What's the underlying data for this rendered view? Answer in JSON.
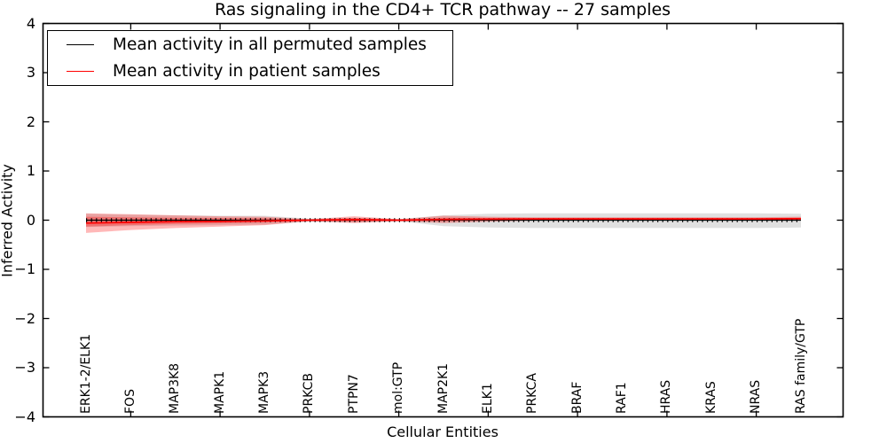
{
  "chart_data": {
    "type": "line",
    "title": "Ras signaling in the CD4+ TCR pathway -- 27 samples",
    "xlabel": "Cellular Entities",
    "ylabel": "Inferred Activity",
    "ylim": [
      -4,
      4
    ],
    "y_ticks": [
      {
        "value": 4,
        "label": "4"
      },
      {
        "value": 3,
        "label": "3"
      },
      {
        "value": 2,
        "label": "2"
      },
      {
        "value": 1,
        "label": "1"
      },
      {
        "value": 0,
        "label": "0"
      },
      {
        "value": -1,
        "label": "−1"
      },
      {
        "value": -2,
        "label": "−2"
      },
      {
        "value": -3,
        "label": "−3"
      },
      {
        "value": -4,
        "label": "−4"
      }
    ],
    "categories": [
      "ERK1-2/ELK1",
      "FOS",
      "MAP3K8",
      "MAPK1",
      "MAPK3",
      "PRKCB",
      "PTPN7",
      "mol:GTP",
      "MAP2K1",
      "ELK1",
      "PRKCA",
      "BRAF",
      "RAF1",
      "HRAS",
      "KRAS",
      "NRAS",
      "RAS family/GTP"
    ],
    "x_tick_mark_indices": [
      1,
      3,
      5,
      7,
      9,
      11,
      13,
      15
    ],
    "grid": false,
    "legend": {
      "position": "upper left",
      "entries": [
        {
          "label": "Mean activity in all permuted samples",
          "color": "#000000"
        },
        {
          "label": "Mean activity in patient samples",
          "color": "#ff0000"
        }
      ]
    },
    "series": [
      {
        "name": "Mean activity in all permuted samples",
        "color": "#000000",
        "band_color": "rgba(0,0,0,0.12)",
        "mean": [
          0,
          0,
          0,
          0,
          0,
          0,
          0,
          0,
          0,
          0,
          0,
          0,
          0,
          0,
          0,
          0,
          0
        ],
        "band_upper": [
          0.13,
          0.11,
          0.1,
          0.09,
          0.09,
          0.03,
          0.05,
          0.02,
          0.1,
          0.13,
          0.14,
          0.14,
          0.14,
          0.14,
          0.14,
          0.14,
          0.13
        ],
        "band_lower": [
          -0.14,
          -0.12,
          -0.11,
          -0.1,
          -0.09,
          -0.03,
          -0.05,
          -0.02,
          -0.12,
          -0.15,
          -0.16,
          -0.16,
          -0.16,
          -0.16,
          -0.16,
          -0.16,
          -0.15
        ]
      },
      {
        "name": "Mean activity in patient samples",
        "color": "#ff0000",
        "outer_band_color": "rgba(255,0,0,0.28)",
        "inner_band_color": "rgba(255,0,0,0.30)",
        "mean": [
          -0.06,
          -0.045,
          -0.03,
          -0.025,
          -0.015,
          0,
          0.01,
          0,
          0.015,
          0.02,
          0.025,
          0.025,
          0.025,
          0.025,
          0.025,
          0.025,
          0.03
        ],
        "outer_upper": [
          0.14,
          0.12,
          0.1,
          0.08,
          0.07,
          0.02,
          0.08,
          0.02,
          0.09,
          0.07,
          0.06,
          0.06,
          0.06,
          0.06,
          0.06,
          0.06,
          0.07
        ],
        "outer_lower": [
          -0.26,
          -0.2,
          -0.16,
          -0.13,
          -0.1,
          -0.02,
          -0.06,
          -0.02,
          -0.06,
          -0.03,
          -0.01,
          -0.01,
          -0.01,
          -0.01,
          -0.01,
          -0.01,
          -0.01
        ],
        "inner_upper": [
          0.07,
          0.06,
          0.05,
          0.045,
          0.04,
          0.01,
          0.045,
          0.01,
          0.05,
          0.045,
          0.042,
          0.042,
          0.042,
          0.042,
          0.042,
          0.042,
          0.048
        ],
        "inner_lower": [
          -0.13,
          -0.1,
          -0.08,
          -0.065,
          -0.05,
          -0.01,
          -0.025,
          -0.01,
          -0.02,
          -0.005,
          0.008,
          0.008,
          0.008,
          0.008,
          0.008,
          0.008,
          0.012
        ]
      }
    ]
  }
}
